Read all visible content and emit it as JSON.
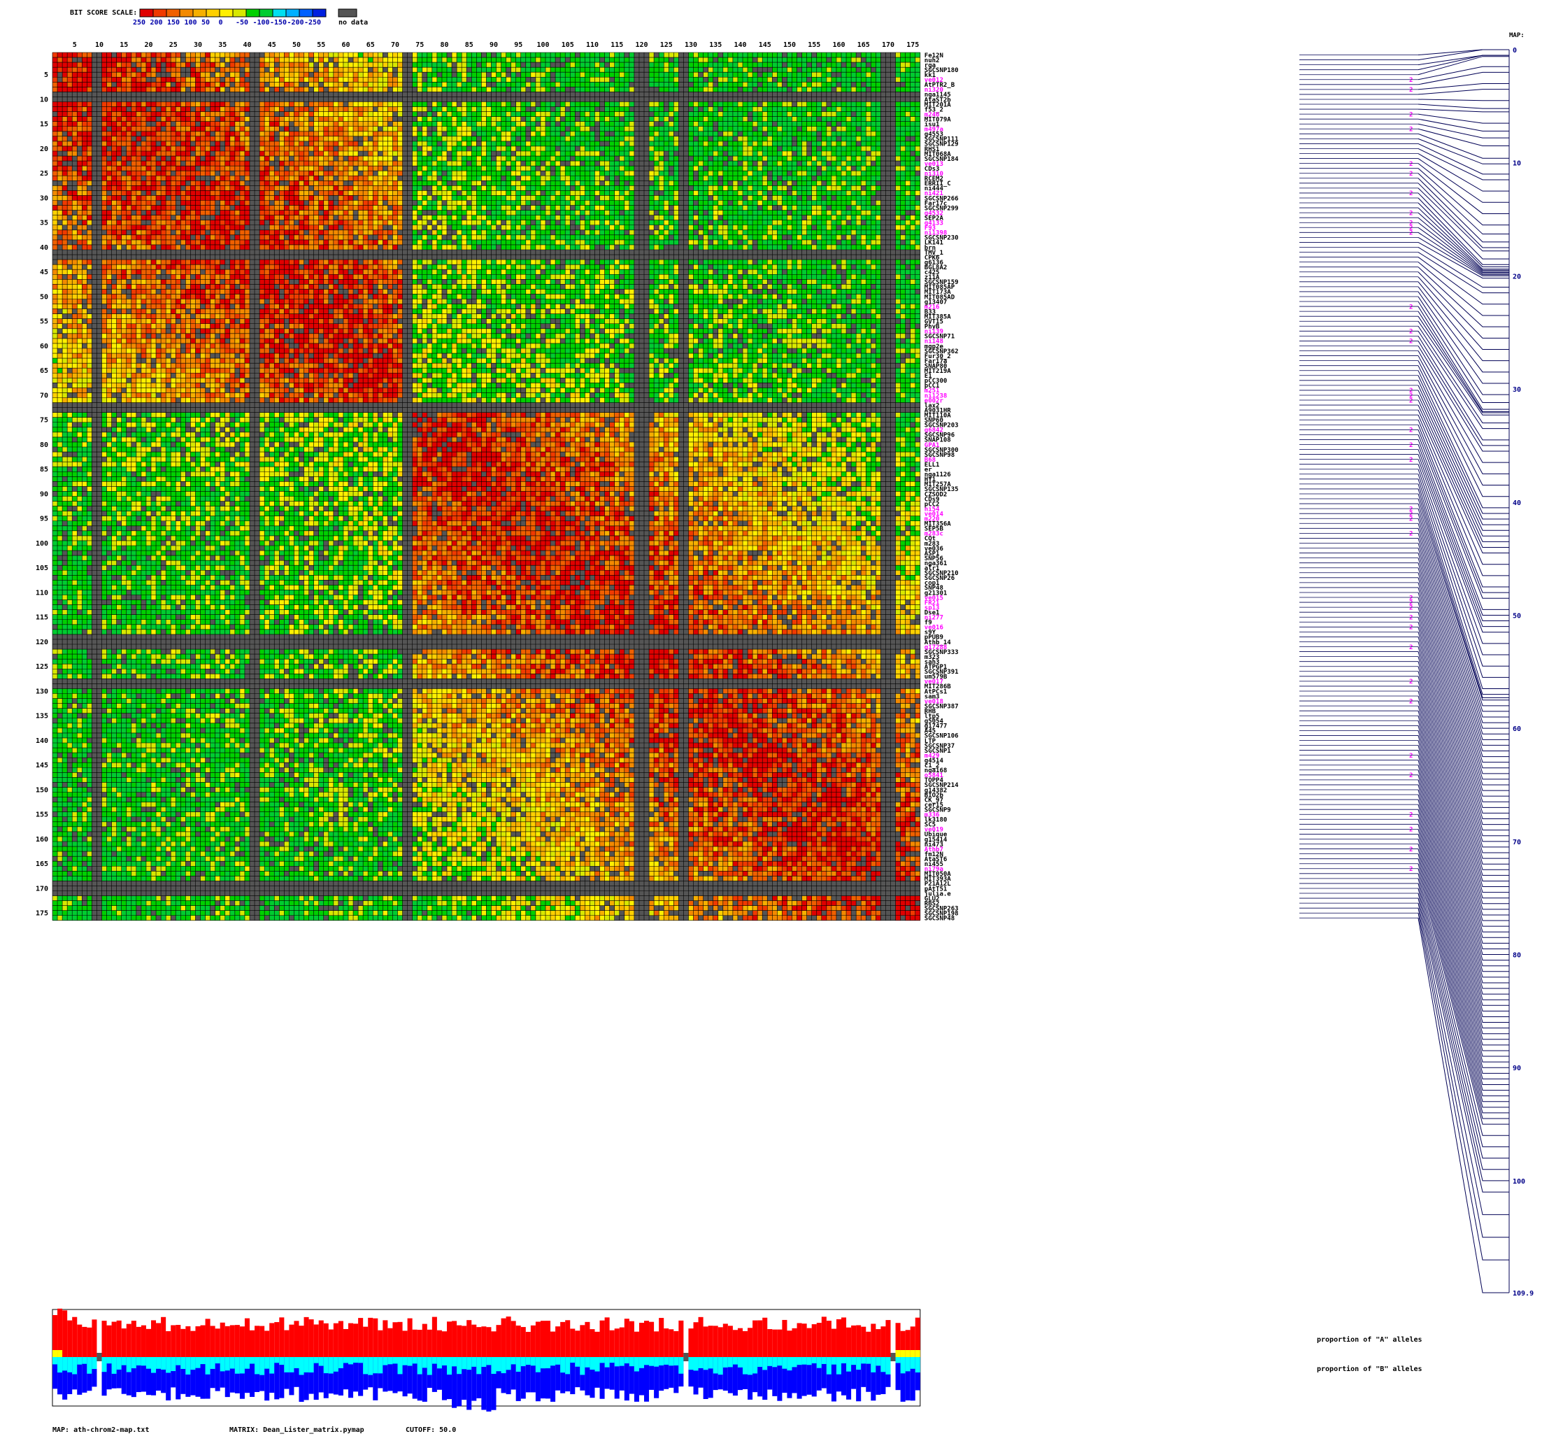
{
  "scale": {
    "title": "BIT SCORE SCALE:",
    "tick_labels": [
      "250",
      "200",
      "150",
      "100",
      "50",
      "0",
      "-50",
      "-100",
      "-150",
      "-200",
      "-250"
    ],
    "bins": [
      {
        "upper": 250,
        "lower": 225,
        "color": "#e00000"
      },
      {
        "upper": 225,
        "lower": 200,
        "color": "#f03a00"
      },
      {
        "upper": 200,
        "lower": 175,
        "color": "#f06000"
      },
      {
        "upper": 175,
        "lower": 150,
        "color": "#f38a00"
      },
      {
        "upper": 150,
        "lower": 125,
        "color": "#f6b000"
      },
      {
        "upper": 125,
        "lower": 100,
        "color": "#ffd000"
      },
      {
        "upper": 100,
        "lower": 75,
        "color": "#fff000"
      },
      {
        "upper": 75,
        "lower": 50,
        "color": "#d8e800"
      },
      {
        "upper": 50,
        "lower": 0,
        "color": "#00d000"
      },
      {
        "upper": 0,
        "lower": -50,
        "color": "#00cc30"
      },
      {
        "upper": -50,
        "lower": -100,
        "color": "#00e0f0"
      },
      {
        "upper": -100,
        "lower": -150,
        "color": "#00b0ff"
      },
      {
        "upper": -150,
        "lower": -200,
        "color": "#0060ff"
      },
      {
        "upper": -200,
        "lower": -250,
        "color": "#0020e0"
      }
    ],
    "no_data_color": "#555555",
    "no_data_label": "no data"
  },
  "colors": {
    "grid_line": "#000000",
    "highlight_label": "#ff00ff",
    "normal_label": "#000000",
    "map_line": "#000055",
    "map_text": "#000088",
    "allele_a": "#ff0000",
    "allele_a_minor": "#ffff00",
    "allele_b": "#0000ff",
    "allele_b_minor": "#00ffff",
    "missing": "#555555"
  },
  "axis": {
    "tick_labels": [
      "5",
      "10",
      "15",
      "20",
      "25",
      "30",
      "35",
      "40",
      "45",
      "50",
      "55",
      "60",
      "65",
      "70",
      "75",
      "80",
      "85",
      "90",
      "95",
      "100",
      "105",
      "110",
      "115",
      "120",
      "125",
      "130",
      "135",
      "140",
      "145",
      "150",
      "155",
      "160",
      "165",
      "170",
      "175"
    ]
  },
  "markers": [
    {
      "name": "Fe12N",
      "hl": false,
      "cM": 0
    },
    {
      "name": "nuh2",
      "hl": false,
      "cM": 0
    },
    {
      "name": "rga",
      "hl": false,
      "cM": 0.5
    },
    {
      "name": "SGCSNP180",
      "hl": false,
      "cM": 0.5
    },
    {
      "name": "kk1",
      "hl": false,
      "cM": 0.6
    },
    {
      "name": "ve012",
      "hl": true,
      "cM": 1.5
    },
    {
      "name": "AtPTR2_B",
      "hl": false,
      "cM": 2
    },
    {
      "name": "ni320",
      "hl": true,
      "cM": 3
    },
    {
      "name": "nga1145",
      "hl": false,
      "cM": 3.5
    },
    {
      "name": "AtaST2b",
      "hl": false,
      "cM": 4.5
    },
    {
      "name": "MIT201A",
      "hl": false,
      "cM": 5.2
    },
    {
      "name": "f53_2",
      "hl": false,
      "cM": 5.5
    },
    {
      "name": "m246",
      "hl": true,
      "cM": 6.5
    },
    {
      "name": "MIT079A",
      "hl": false,
      "cM": 7.2
    },
    {
      "name": "isu1",
      "hl": false,
      "cM": 7.8
    },
    {
      "name": "m497a",
      "hl": true,
      "cM": 8.5
    },
    {
      "name": "g4553",
      "hl": false,
      "cM": 9.6
    },
    {
      "name": "SGCSNP111",
      "hl": false,
      "cM": 10.1
    },
    {
      "name": "SGCSNP129",
      "hl": false,
      "cM": 11
    },
    {
      "name": "RHS1",
      "hl": false,
      "cM": 11.5
    },
    {
      "name": "MIT068A",
      "hl": false,
      "cM": 12.5
    },
    {
      "name": "SGCSNP184",
      "hl": false,
      "cM": 13.5
    },
    {
      "name": "ve013",
      "hl": true,
      "cM": 14.5
    },
    {
      "name": "CDs3",
      "hl": false,
      "cM": 15.5
    },
    {
      "name": "ni310",
      "hl": true,
      "cM": 16.3
    },
    {
      "name": "RCEM2",
      "hl": false,
      "cM": 17
    },
    {
      "name": "ERRII_C",
      "hl": false,
      "cM": 17.5
    },
    {
      "name": "ni444",
      "hl": false,
      "cM": 17.8
    },
    {
      "name": "ni421",
      "hl": true,
      "cM": 18.5
    },
    {
      "name": "SGCSNP266",
      "hl": false,
      "cM": 19
    },
    {
      "name": "Far17c",
      "hl": false,
      "cM": 19.2
    },
    {
      "name": "SGCSNP299",
      "hl": false,
      "cM": 19.4
    },
    {
      "name": "g4532",
      "hl": true,
      "cM": 19.5
    },
    {
      "name": "SEP2A",
      "hl": false,
      "cM": 19.6
    },
    {
      "name": "g4133",
      "hl": true,
      "cM": 19.7
    },
    {
      "name": "F93",
      "hl": true,
      "cM": 19.8
    },
    {
      "name": "ni1398",
      "hl": true,
      "cM": 19.9
    },
    {
      "name": "SGCSNP230",
      "hl": false,
      "cM": 20
    },
    {
      "name": "LK141",
      "hl": false,
      "cM": 20.2
    },
    {
      "name": "brn",
      "hl": false,
      "cM": 21
    },
    {
      "name": "TMV_1",
      "hl": false,
      "cM": 21.5
    },
    {
      "name": "CPK6",
      "hl": false,
      "cM": 22.5
    },
    {
      "name": "g6136",
      "hl": false,
      "cM": 23.5
    },
    {
      "name": "BGL8A2",
      "hl": false,
      "cM": 24.5
    },
    {
      "name": "c425",
      "hl": false,
      "cM": 25.5
    },
    {
      "name": "z11A",
      "hl": false,
      "cM": 26.5
    },
    {
      "name": "SGCSNP159",
      "hl": false,
      "cM": 27.5
    },
    {
      "name": "MIT085AP",
      "hl": false,
      "cM": 28.5
    },
    {
      "name": "MIT173A",
      "hl": false,
      "cM": 29.5
    },
    {
      "name": "MIT085AD",
      "hl": false,
      "cM": 30.5
    },
    {
      "name": "g13407",
      "hl": false,
      "cM": 31.2
    },
    {
      "name": "m216",
      "hl": true,
      "cM": 31.8
    },
    {
      "name": "B33",
      "hl": false,
      "cM": 32
    },
    {
      "name": "MIT385A",
      "hl": false,
      "cM": 32.1
    },
    {
      "name": "GVT15",
      "hl": false,
      "cM": 32.3
    },
    {
      "name": "PhyB",
      "hl": false,
      "cM": 33
    },
    {
      "name": "ni139",
      "hl": true,
      "cM": 33.5
    },
    {
      "name": "SGCSNP71",
      "hl": false,
      "cM": 34.5
    },
    {
      "name": "ni148",
      "hl": true,
      "cM": 35
    },
    {
      "name": "mgp2e",
      "hl": false,
      "cM": 35.5
    },
    {
      "name": "SGCSNP362",
      "hl": false,
      "cM": 36.5
    },
    {
      "name": "Fur30_2",
      "hl": false,
      "cM": 37.5
    },
    {
      "name": "Far17a",
      "hl": false,
      "cM": 38.5
    },
    {
      "name": "SNAP80",
      "hl": false,
      "cM": 39.5
    },
    {
      "name": "MIT219A",
      "hl": false,
      "cM": 40.5
    },
    {
      "name": "E1",
      "hl": false,
      "cM": 41
    },
    {
      "name": "pCC300",
      "hl": false,
      "cM": 41.5
    },
    {
      "name": "pCC1",
      "hl": false,
      "cM": 42
    },
    {
      "name": "m251",
      "hl": true,
      "cM": 42.5
    },
    {
      "name": "ni1238",
      "hl": true,
      "cM": 43
    },
    {
      "name": "e002r",
      "hl": true,
      "cM": 43.5
    },
    {
      "name": "lax2",
      "hl": false,
      "cM": 44
    },
    {
      "name": "A9031HR",
      "hl": false,
      "cM": 44.5
    },
    {
      "name": "MIT110A",
      "hl": false,
      "cM": 45.5
    },
    {
      "name": "SNP60",
      "hl": false,
      "cM": 46.5
    },
    {
      "name": "SGCSNP203",
      "hl": false,
      "cM": 47.5
    },
    {
      "name": "g6842",
      "hl": true,
      "cM": 48
    },
    {
      "name": "SGCSNP96",
      "hl": false,
      "cM": 48.5
    },
    {
      "name": "SNAP108",
      "hl": false,
      "cM": 49.5
    },
    {
      "name": "GPA1",
      "hl": true,
      "cM": 50
    },
    {
      "name": "SGCSNP300",
      "hl": false,
      "cM": 50.5
    },
    {
      "name": "SGCSNP98",
      "hl": false,
      "cM": 51
    },
    {
      "name": "B68",
      "hl": true,
      "cM": 51.5
    },
    {
      "name": "ELL1",
      "hl": false,
      "cM": 52.5
    },
    {
      "name": "er",
      "hl": false,
      "cM": 53.5
    },
    {
      "name": "nga1126",
      "hl": false,
      "cM": 54.5
    },
    {
      "name": "HY1",
      "hl": false,
      "cM": 55.5
    },
    {
      "name": "MIT257A",
      "hl": false,
      "cM": 56.5
    },
    {
      "name": "SGCSNP135",
      "hl": false,
      "cM": 57
    },
    {
      "name": "CZSOD2",
      "hl": false,
      "cM": 57.3
    },
    {
      "name": "CDs9",
      "hl": false,
      "cM": 57.5
    },
    {
      "name": "pCC2",
      "hl": false,
      "cM": 58
    },
    {
      "name": "ni54",
      "hl": true,
      "cM": 58.5
    },
    {
      "name": "ve014",
      "hl": true,
      "cM": 59
    },
    {
      "name": "m220",
      "hl": true,
      "cM": 59.5
    },
    {
      "name": "MIT356A",
      "hl": false,
      "cM": 60
    },
    {
      "name": "SEP5B",
      "hl": false,
      "cM": 60.5
    },
    {
      "name": "m283c",
      "hl": true,
      "cM": 61
    },
    {
      "name": "CQt",
      "hl": false,
      "cM": 61.5
    },
    {
      "name": "m283",
      "hl": false,
      "cM": 62
    },
    {
      "name": "ve036",
      "hl": false,
      "cM": 62.5
    },
    {
      "name": "ASP1",
      "hl": false,
      "cM": 63
    },
    {
      "name": "SNP56",
      "hl": false,
      "cM": 63.5
    },
    {
      "name": "nga361",
      "hl": false,
      "cM": 64
    },
    {
      "name": "alr1",
      "hl": false,
      "cM": 64.5
    },
    {
      "name": "SGCSNP210",
      "hl": false,
      "cM": 65
    },
    {
      "name": "SGCSNP26",
      "hl": false,
      "cM": 65.5
    },
    {
      "name": "cop1",
      "hl": false,
      "cM": 66
    },
    {
      "name": "SNP48",
      "hl": false,
      "cM": 66.5
    },
    {
      "name": "g21301",
      "hl": false,
      "cM": 67
    },
    {
      "name": "ve015",
      "hl": true,
      "cM": 67.5
    },
    {
      "name": "FR21",
      "hl": true,
      "cM": 68
    },
    {
      "name": "sp13",
      "hl": true,
      "cM": 68.5
    },
    {
      "name": "Dse1",
      "hl": false,
      "cM": 69
    },
    {
      "name": "ni277",
      "hl": true,
      "cM": 69.5
    },
    {
      "name": "f9",
      "hl": false,
      "cM": 70
    },
    {
      "name": "ve016",
      "hl": true,
      "cM": 70.5
    },
    {
      "name": "s9Y",
      "hl": false,
      "cM": 71
    },
    {
      "name": "pPUB9",
      "hl": false,
      "cM": 71.5
    },
    {
      "name": "Athb_14",
      "hl": false,
      "cM": 72
    },
    {
      "name": "g17288",
      "hl": true,
      "cM": 72.5
    },
    {
      "name": "SGCSNP333",
      "hl": false,
      "cM": 73
    },
    {
      "name": "m323",
      "hl": false,
      "cM": 73.5
    },
    {
      "name": "sah3",
      "hl": false,
      "cM": 74
    },
    {
      "name": "ATPGP1",
      "hl": false,
      "cM": 74.5
    },
    {
      "name": "SGCSNP391",
      "hl": false,
      "cM": 75
    },
    {
      "name": "um579B",
      "hl": false,
      "cM": 75.5
    },
    {
      "name": "ve017",
      "hl": true,
      "cM": 76
    },
    {
      "name": "MIT286B",
      "hl": false,
      "cM": 76.5
    },
    {
      "name": "AtPCs1",
      "hl": false,
      "cM": 77
    },
    {
      "name": "sam3",
      "hl": false,
      "cM": 77.5
    },
    {
      "name": "ve018",
      "hl": true,
      "cM": 78
    },
    {
      "name": "SGCSNP387",
      "hl": false,
      "cM": 78.5
    },
    {
      "name": "RHB",
      "hl": false,
      "cM": 79
    },
    {
      "name": "ltp5",
      "hl": false,
      "cM": 79.5
    },
    {
      "name": "g5054",
      "hl": false,
      "cM": 80
    },
    {
      "name": "g17477",
      "hl": false,
      "cM": 80.5
    },
    {
      "name": "A45",
      "hl": false,
      "cM": 81
    },
    {
      "name": "SGCSNP106",
      "hl": false,
      "cM": 81.5
    },
    {
      "name": "LTP",
      "hl": false,
      "cM": 82
    },
    {
      "name": "SGCSNP37",
      "hl": false,
      "cM": 82.5
    },
    {
      "name": "SGCSNP1",
      "hl": false,
      "cM": 83
    },
    {
      "name": "m429",
      "hl": true,
      "cM": 83.5
    },
    {
      "name": "g4514",
      "hl": false,
      "cM": 84
    },
    {
      "name": "c1_2",
      "hl": false,
      "cM": 84.5
    },
    {
      "name": "nga168",
      "hl": false,
      "cM": 85
    },
    {
      "name": "o5841",
      "hl": true,
      "cM": 85.5
    },
    {
      "name": "TOPP4",
      "hl": false,
      "cM": 86
    },
    {
      "name": "SGCSNP214",
      "hl": false,
      "cM": 86.5
    },
    {
      "name": "g14382",
      "hl": false,
      "cM": 87
    },
    {
      "name": "BIO2b",
      "hl": false,
      "cM": 87.5
    },
    {
      "name": "CK_97",
      "hl": false,
      "cM": 88
    },
    {
      "name": "cer15",
      "hl": false,
      "cM": 88.5
    },
    {
      "name": "SGCSNP9",
      "hl": false,
      "cM": 89
    },
    {
      "name": "m336",
      "hl": true,
      "cM": 89.5
    },
    {
      "name": "lk3180",
      "hl": false,
      "cM": 90
    },
    {
      "name": "SC5",
      "hl": false,
      "cM": 90.5
    },
    {
      "name": "ve019",
      "hl": true,
      "cM": 91
    },
    {
      "name": "Ubique",
      "hl": false,
      "cM": 91.5
    },
    {
      "name": "g15414",
      "hl": false,
      "cM": 92
    },
    {
      "name": "ni473",
      "hl": false,
      "cM": 92.5
    },
    {
      "name": "Athb7",
      "hl": true,
      "cM": 93
    },
    {
      "name": "fm12N",
      "hl": false,
      "cM": 93.5
    },
    {
      "name": "AtaST6",
      "hl": false,
      "cM": 94
    },
    {
      "name": "ni455",
      "hl": false,
      "cM": 94.5
    },
    {
      "name": "ni79a",
      "hl": true,
      "cM": 95
    },
    {
      "name": "MIT050A",
      "hl": false,
      "cM": 96
    },
    {
      "name": "MIT393A",
      "hl": false,
      "cM": 97
    },
    {
      "name": "P21A12L",
      "hl": false,
      "cM": 98
    },
    {
      "name": "pAtT51",
      "hl": false,
      "cM": 99
    },
    {
      "name": "julia.e",
      "hl": false,
      "cM": 100
    },
    {
      "name": "GLU2",
      "hl": false,
      "cM": 101
    },
    {
      "name": "RBS2",
      "hl": false,
      "cM": 103
    },
    {
      "name": "SGCSNP263",
      "hl": false,
      "cM": 105
    },
    {
      "name": "SGCSNP198",
      "hl": false,
      "cM": 107
    },
    {
      "name": "SGCSNP48",
      "hl": false,
      "cM": 109.9
    }
  ],
  "dup_tag": "2",
  "map": {
    "title": "MAP:",
    "tick_labels": [
      "0",
      "10",
      "20",
      "30",
      "40",
      "50",
      "60",
      "70",
      "80",
      "90",
      "100",
      "109.9"
    ],
    "max_cM": 109.9
  },
  "proportions": {
    "a_label": "proportion of \"A\" alleles",
    "b_label": "proportion of \"B\" alleles"
  },
  "footer": {
    "map_text": "MAP: ath-chrom2-map.txt",
    "matrix_text": "MATRIX: Dean_Lister_matrix.pymap",
    "cutoff_text": "CUTOFF: 50.0"
  },
  "chart_data": {
    "type": "heatmap",
    "title": "",
    "xlabel": "",
    "ylabel": "",
    "n_markers": 176,
    "value_units": "bit score",
    "value_range": [
      -250,
      250
    ],
    "missing_columns": [
      9,
      10,
      41,
      42,
      72,
      73,
      119,
      120,
      121,
      128,
      129,
      169,
      170,
      171
    ],
    "strong_blocks": [
      {
        "rows": [
          5,
          72
        ],
        "cols": [
          5,
          72
        ],
        "level": "high (150-250)"
      },
      {
        "rows": [
          73,
          175
        ],
        "cols": [
          73,
          175
        ],
        "level": "high (150-250)"
      },
      {
        "rows": [
          100,
          175
        ],
        "cols": [
          1,
          40
        ],
        "level": "low (0-50)"
      }
    ]
  }
}
